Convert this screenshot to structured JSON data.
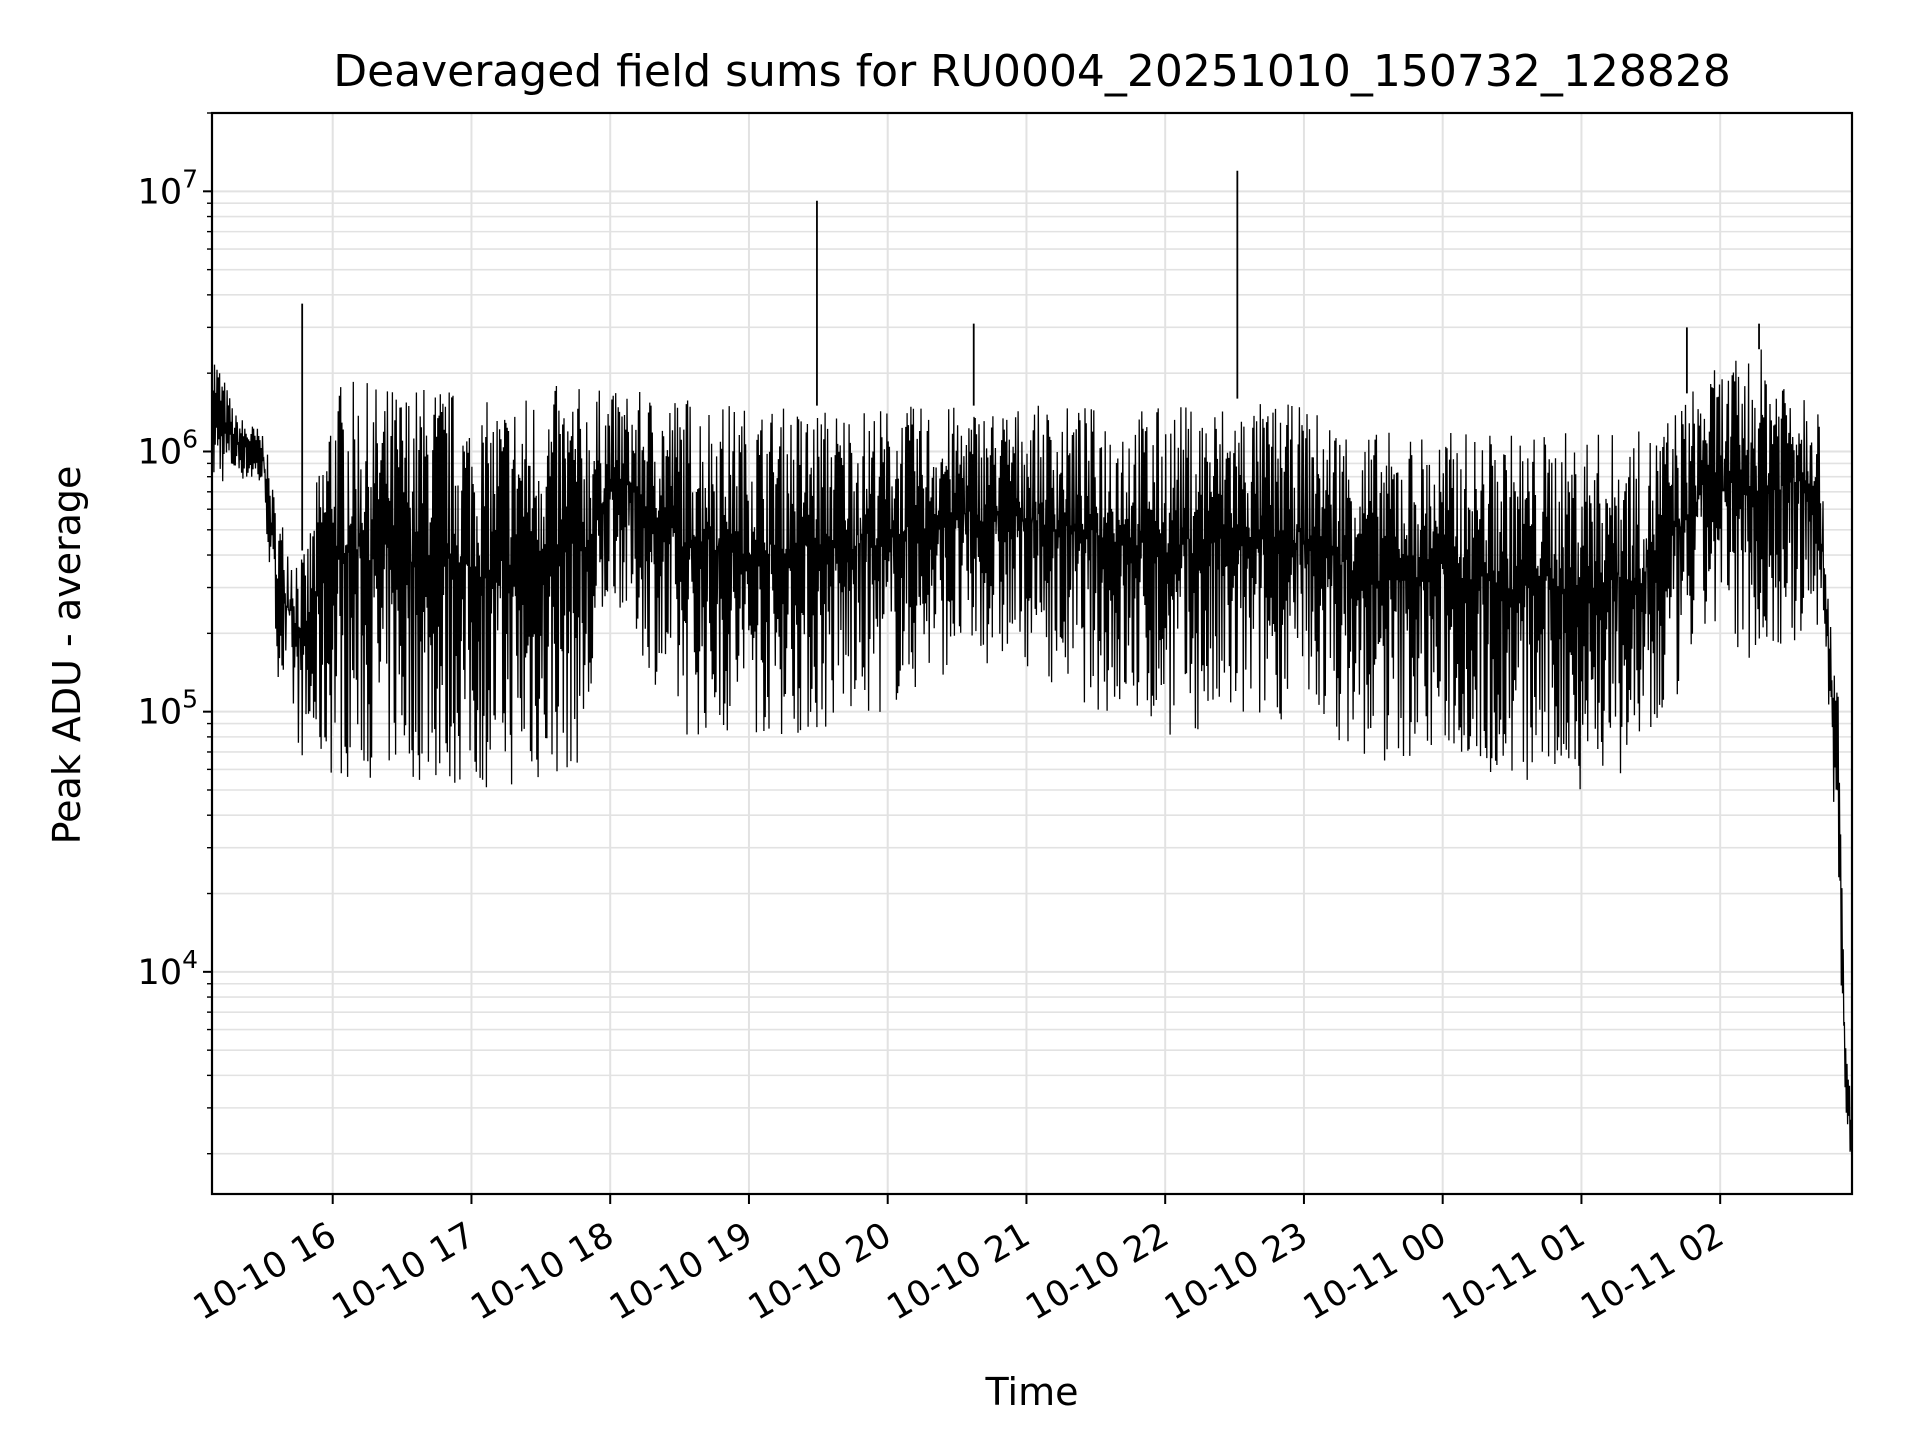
{
  "chart_data": {
    "type": "line",
    "title": "Deaveraged field sums for RU0004_20251010_150732_128828",
    "xlabel": "Time",
    "ylabel": "Peak ADU - average",
    "yscale": "log",
    "ylim": [
      1400,
      20000000
    ],
    "xlim_hours": [
      15.13,
      26.95
    ],
    "grid": true,
    "x_ticks": [
      {
        "hour": 16,
        "label": "10-10 16"
      },
      {
        "hour": 17,
        "label": "10-10 17"
      },
      {
        "hour": 18,
        "label": "10-10 18"
      },
      {
        "hour": 19,
        "label": "10-10 19"
      },
      {
        "hour": 20,
        "label": "10-10 20"
      },
      {
        "hour": 21,
        "label": "10-10 21"
      },
      {
        "hour": 22,
        "label": "10-10 22"
      },
      {
        "hour": 23,
        "label": "10-10 23"
      },
      {
        "hour": 24,
        "label": "10-11 00"
      },
      {
        "hour": 25,
        "label": "10-11 01"
      },
      {
        "hour": 26,
        "label": "10-11 02"
      }
    ],
    "y_ticks": [
      {
        "value": 10000,
        "base": "10",
        "exp": "4"
      },
      {
        "value": 100000,
        "base": "10",
        "exp": "5"
      },
      {
        "value": 1000000,
        "base": "10",
        "exp": "6"
      },
      {
        "value": 10000000,
        "base": "10",
        "exp": "7"
      }
    ],
    "series": [
      {
        "name": "Peak ADU - average",
        "color": "#000000",
        "segments_note": "hour offset from 2025-10-10 00:00; lo/hi = band envelope of dense oscillation",
        "envelope": [
          {
            "x": 15.13,
            "lo": 700000,
            "hi": 2700000
          },
          {
            "x": 15.3,
            "lo": 800000,
            "hi": 1400000
          },
          {
            "x": 15.5,
            "lo": 700000,
            "hi": 1200000
          },
          {
            "x": 15.6,
            "lo": 140000,
            "hi": 600000
          },
          {
            "x": 15.8,
            "lo": 60000,
            "hi": 400000
          },
          {
            "x": 16.0,
            "lo": 55000,
            "hi": 1900000
          },
          {
            "x": 16.5,
            "lo": 55000,
            "hi": 1800000
          },
          {
            "x": 16.8,
            "lo": 50000,
            "hi": 1900000
          },
          {
            "x": 17.0,
            "lo": 50000,
            "hi": 1500000
          },
          {
            "x": 17.5,
            "lo": 50000,
            "hi": 1800000
          },
          {
            "x": 17.85,
            "lo": 65000,
            "hi": 1800000
          },
          {
            "x": 18.0,
            "lo": 300000,
            "hi": 1700000
          },
          {
            "x": 18.5,
            "lo": 80000,
            "hi": 1700000
          },
          {
            "x": 19.0,
            "lo": 80000,
            "hi": 1500000
          },
          {
            "x": 19.5,
            "lo": 80000,
            "hi": 1500000
          },
          {
            "x": 20.0,
            "lo": 100000,
            "hi": 1500000
          },
          {
            "x": 20.5,
            "lo": 150000,
            "hi": 1500000
          },
          {
            "x": 21.0,
            "lo": 150000,
            "hi": 1500000
          },
          {
            "x": 21.5,
            "lo": 100000,
            "hi": 1500000
          },
          {
            "x": 22.0,
            "lo": 80000,
            "hi": 1500000
          },
          {
            "x": 22.5,
            "lo": 80000,
            "hi": 1600000
          },
          {
            "x": 23.0,
            "lo": 100000,
            "hi": 1500000
          },
          {
            "x": 23.5,
            "lo": 60000,
            "hi": 1200000
          },
          {
            "x": 24.0,
            "lo": 70000,
            "hi": 1200000
          },
          {
            "x": 24.5,
            "lo": 50000,
            "hi": 1200000
          },
          {
            "x": 25.0,
            "lo": 50000,
            "hi": 1200000
          },
          {
            "x": 25.5,
            "lo": 60000,
            "hi": 1200000
          },
          {
            "x": 25.9,
            "lo": 200000,
            "hi": 2000000
          },
          {
            "x": 26.3,
            "lo": 150000,
            "hi": 2500000
          },
          {
            "x": 26.7,
            "lo": 200000,
            "hi": 2000000
          },
          {
            "x": 26.75,
            "lo": 200000,
            "hi": 500000
          },
          {
            "x": 26.85,
            "lo": 20000,
            "hi": 120000
          },
          {
            "x": 26.9,
            "lo": 3000,
            "hi": 6000
          },
          {
            "x": 26.95,
            "lo": 1600,
            "hi": 3000
          }
        ],
        "spikes": [
          {
            "x": 15.78,
            "value": 3700000
          },
          {
            "x": 19.49,
            "value": 9200000
          },
          {
            "x": 20.62,
            "value": 3100000
          },
          {
            "x": 22.52,
            "value": 12000000
          },
          {
            "x": 25.76,
            "value": 3000000
          },
          {
            "x": 26.28,
            "value": 3100000
          }
        ]
      }
    ]
  }
}
